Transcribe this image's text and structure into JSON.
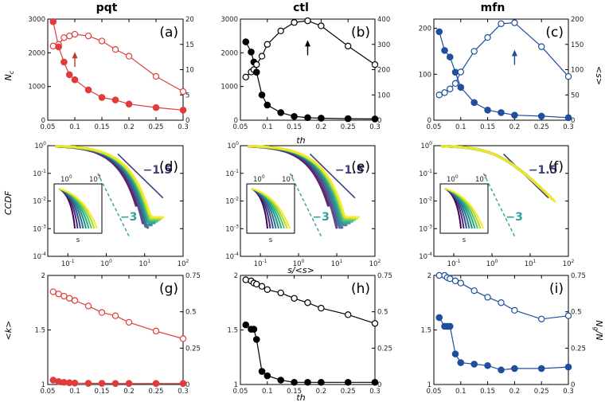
{
  "figure": {
    "columns": [
      "pqt",
      "ctl",
      "mfn"
    ],
    "xlabel_th": "th",
    "xlabel_ccdf": "s/<s>",
    "ylabel_nc": "N",
    "ylabel_nc_sub": "c",
    "ylabel_s": "<s>",
    "ylabel_ccdf": "CCDF",
    "ylabel_k": "<k>",
    "ylabel_ng": "N",
    "ylabel_ng_sub": "g",
    "ylabel_ng_tail": "/N",
    "inset_xlabel": "s",
    "slope_main": "−1.5",
    "slope_side": "−3"
  },
  "chart_data": [
    {
      "id": "a",
      "type": "line",
      "label": "(a)",
      "column": "pqt",
      "color": "#e03c3c",
      "x": [
        0.06,
        0.07,
        0.08,
        0.09,
        0.1,
        0.125,
        0.15,
        0.175,
        0.2,
        0.25,
        0.3
      ],
      "left_series": {
        "name": "N_c",
        "marker": "open",
        "values": [
          2200,
          2250,
          2450,
          2500,
          2550,
          2500,
          2350,
          2100,
          1900,
          1300,
          850
        ]
      },
      "right_series": {
        "name": "<s>",
        "marker": "filled",
        "values": [
          19.5,
          14.5,
          11.5,
          9.0,
          8.0,
          6.0,
          4.5,
          4.0,
          3.2,
          2.5,
          2.0
        ]
      },
      "xlim": [
        0.05,
        0.3
      ],
      "left_ylim": [
        0,
        3000
      ],
      "right_ylim": [
        0,
        20
      ],
      "annotation": "arrow at th=0.1"
    },
    {
      "id": "b",
      "type": "line",
      "label": "(b)",
      "column": "ctl",
      "color": "#000000",
      "x": [
        0.06,
        0.07,
        0.075,
        0.08,
        0.09,
        0.1,
        0.125,
        0.15,
        0.175,
        0.2,
        0.25,
        0.3
      ],
      "left_series": {
        "name": "N_c",
        "marker": "open",
        "values": [
          1280,
          1430,
          1500,
          1650,
          1900,
          2250,
          2650,
          2900,
          2950,
          2800,
          2200,
          1650
        ]
      },
      "right_series": {
        "name": "<s>",
        "marker": "filled",
        "values": [
          310,
          270,
          230,
          190,
          100,
          60,
          30,
          15,
          10,
          8,
          6,
          5
        ]
      },
      "xlim": [
        0.05,
        0.3
      ],
      "left_ylim": [
        0,
        3000
      ],
      "right_ylim": [
        0,
        400
      ],
      "annotation": "arrow at th=0.175"
    },
    {
      "id": "c",
      "type": "line",
      "label": "(c)",
      "column": "mfn",
      "color": "#1f4e9c",
      "x": [
        0.06,
        0.07,
        0.08,
        0.09,
        0.1,
        0.125,
        0.15,
        0.175,
        0.2,
        0.25,
        0.3
      ],
      "left_series": {
        "name": "N_c",
        "marker": "open",
        "values": [
          55,
          60,
          68,
          80,
          105,
          150,
          180,
          210,
          212,
          160,
          95
        ]
      },
      "right_series": {
        "name": "<s>",
        "marker": "filled",
        "values": [
          175,
          138,
          125,
          95,
          65,
          35,
          20,
          15,
          10,
          8,
          5
        ]
      },
      "xlim": [
        0.05,
        0.3
      ],
      "left_ylim": [
        0,
        220
      ],
      "right_ylim": [
        0,
        200
      ],
      "annotation": "arrow at th=0.2"
    },
    {
      "id": "d",
      "type": "scatter",
      "label": "(d)",
      "column": "pqt",
      "xscale": "log",
      "yscale": "log",
      "xlim": [
        0.03,
        100
      ],
      "ylim": [
        0.0001,
        1
      ],
      "inset": true
    },
    {
      "id": "e",
      "type": "scatter",
      "label": "(e)",
      "column": "ctl",
      "xscale": "log",
      "yscale": "log",
      "xlim": [
        0.03,
        100
      ],
      "ylim": [
        0.0001,
        1
      ],
      "inset": true
    },
    {
      "id": "f",
      "type": "scatter",
      "label": "(f)",
      "column": "mfn",
      "xscale": "log",
      "yscale": "log",
      "xlim": [
        0.03,
        100
      ],
      "ylim": [
        0.0001,
        1
      ],
      "inset": true
    },
    {
      "id": "g",
      "type": "line",
      "label": "(g)",
      "column": "pqt",
      "color": "#e03c3c",
      "x": [
        0.06,
        0.07,
        0.08,
        0.09,
        0.1,
        0.125,
        0.15,
        0.175,
        0.2,
        0.25,
        0.3
      ],
      "left_series": {
        "name": "<k>",
        "marker": "open",
        "values": [
          1.85,
          1.83,
          1.81,
          1.79,
          1.77,
          1.72,
          1.66,
          1.63,
          1.57,
          1.49,
          1.42
        ]
      },
      "right_series": {
        "name": "N_g/N",
        "marker": "filled",
        "values": [
          0.03,
          0.02,
          0.015,
          0.012,
          0.01,
          0.008,
          0.008,
          0.007,
          0.007,
          0.007,
          0.007
        ]
      },
      "xlim": [
        0.05,
        0.3
      ],
      "left_ylim": [
        1,
        2
      ],
      "right_ylim": [
        0,
        0.75
      ]
    },
    {
      "id": "h",
      "type": "line",
      "label": "(h)",
      "column": "ctl",
      "color": "#000000",
      "x": [
        0.06,
        0.07,
        0.075,
        0.08,
        0.09,
        0.1,
        0.125,
        0.15,
        0.175,
        0.2,
        0.25,
        0.3
      ],
      "left_series": {
        "name": "<k>",
        "marker": "open",
        "values": [
          1.96,
          1.95,
          1.93,
          1.92,
          1.9,
          1.87,
          1.84,
          1.79,
          1.75,
          1.7,
          1.64,
          1.56
        ]
      },
      "right_series": {
        "name": "N_g/N",
        "marker": "filled",
        "values": [
          0.41,
          0.38,
          0.38,
          0.31,
          0.09,
          0.06,
          0.03,
          0.015,
          0.015,
          0.015,
          0.015,
          0.015
        ]
      },
      "xlim": [
        0.05,
        0.3
      ],
      "left_ylim": [
        1,
        2
      ],
      "right_ylim": [
        0,
        0.75
      ]
    },
    {
      "id": "i",
      "type": "line",
      "label": "(i)",
      "column": "mfn",
      "color": "#1f4e9c",
      "x": [
        0.06,
        0.07,
        0.075,
        0.08,
        0.09,
        0.1,
        0.125,
        0.15,
        0.175,
        0.2,
        0.25,
        0.3
      ],
      "left_series": {
        "name": "<k>",
        "marker": "open",
        "values": [
          2.0,
          2.0,
          1.98,
          1.97,
          1.95,
          1.93,
          1.86,
          1.8,
          1.75,
          1.68,
          1.6,
          1.63
        ]
      },
      "right_series": {
        "name": "N_g/N",
        "marker": "filled",
        "values": [
          0.46,
          0.4,
          0.4,
          0.4,
          0.21,
          0.15,
          0.14,
          0.13,
          0.1,
          0.11,
          0.11,
          0.12
        ]
      },
      "xlim": [
        0.05,
        0.3
      ],
      "left_ylim": [
        1,
        2
      ],
      "right_ylim": [
        0,
        0.75
      ]
    }
  ]
}
